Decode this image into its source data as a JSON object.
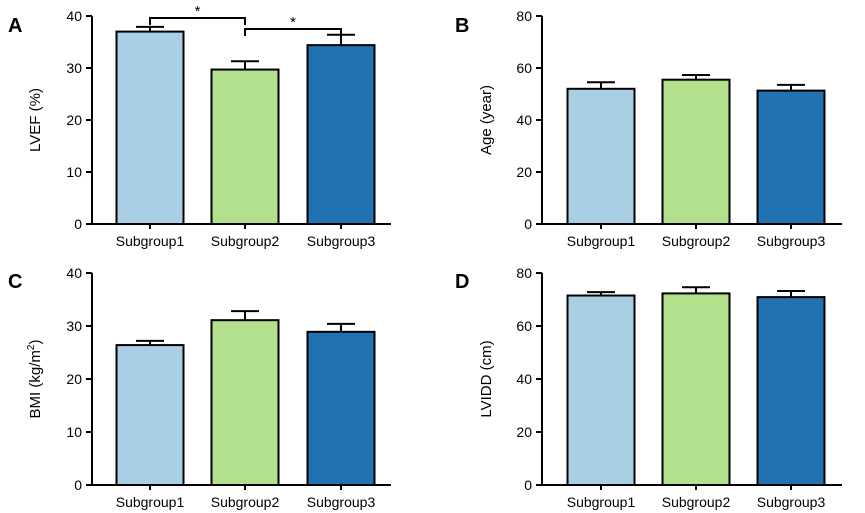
{
  "chart_data": [
    {
      "panel": "A",
      "type": "bar",
      "ylabel": "LVEF (%)",
      "ylabel_sup": "",
      "ylabel_suffix": "",
      "ylim": [
        0,
        40
      ],
      "yticks": [
        0,
        10,
        20,
        30,
        40
      ],
      "categories": [
        "Subgroup1",
        "Subgroup2",
        "Subgroup3"
      ],
      "values": [
        37,
        29.7,
        34.4
      ],
      "errors": [
        0.9,
        1.6,
        2.0
      ],
      "colors": [
        "#a9cfe4",
        "#b3e08c",
        "#2271b0"
      ],
      "significance": [
        {
          "from": 0,
          "to": 1,
          "label": "*"
        },
        {
          "from": 1,
          "to": 2,
          "label": "*"
        }
      ]
    },
    {
      "panel": "B",
      "type": "bar",
      "ylabel": "Age (year)",
      "ylabel_sup": "",
      "ylabel_suffix": "",
      "ylim": [
        0,
        80
      ],
      "yticks": [
        0,
        20,
        40,
        60,
        80
      ],
      "categories": [
        "Subgroup1",
        "Subgroup2",
        "Subgroup3"
      ],
      "values": [
        52,
        55.5,
        51.3
      ],
      "errors": [
        2.5,
        1.8,
        2.2
      ],
      "colors": [
        "#a9cfe4",
        "#b3e08c",
        "#2271b0"
      ],
      "significance": []
    },
    {
      "panel": "C",
      "type": "bar",
      "ylabel": "BMI (kg/m",
      "ylabel_sup": "2",
      "ylabel_suffix": ")",
      "ylim": [
        0,
        40
      ],
      "yticks": [
        0,
        10,
        20,
        30,
        40
      ],
      "categories": [
        "Subgroup1",
        "Subgroup2",
        "Subgroup3"
      ],
      "values": [
        26.4,
        31.1,
        28.9
      ],
      "errors": [
        0.8,
        1.7,
        1.5
      ],
      "colors": [
        "#a9cfe4",
        "#b3e08c",
        "#2271b0"
      ],
      "significance": []
    },
    {
      "panel": "D",
      "type": "bar",
      "ylabel": "LVIDD (cm)",
      "ylabel_sup": "",
      "ylabel_suffix": "",
      "ylim": [
        0,
        80
      ],
      "yticks": [
        0,
        20,
        40,
        60,
        80
      ],
      "categories": [
        "Subgroup1",
        "Subgroup2",
        "Subgroup3"
      ],
      "values": [
        71.5,
        72.3,
        70.9
      ],
      "errors": [
        1.3,
        2.3,
        2.3
      ],
      "colors": [
        "#a9cfe4",
        "#b3e08c",
        "#2271b0"
      ],
      "significance": []
    }
  ]
}
